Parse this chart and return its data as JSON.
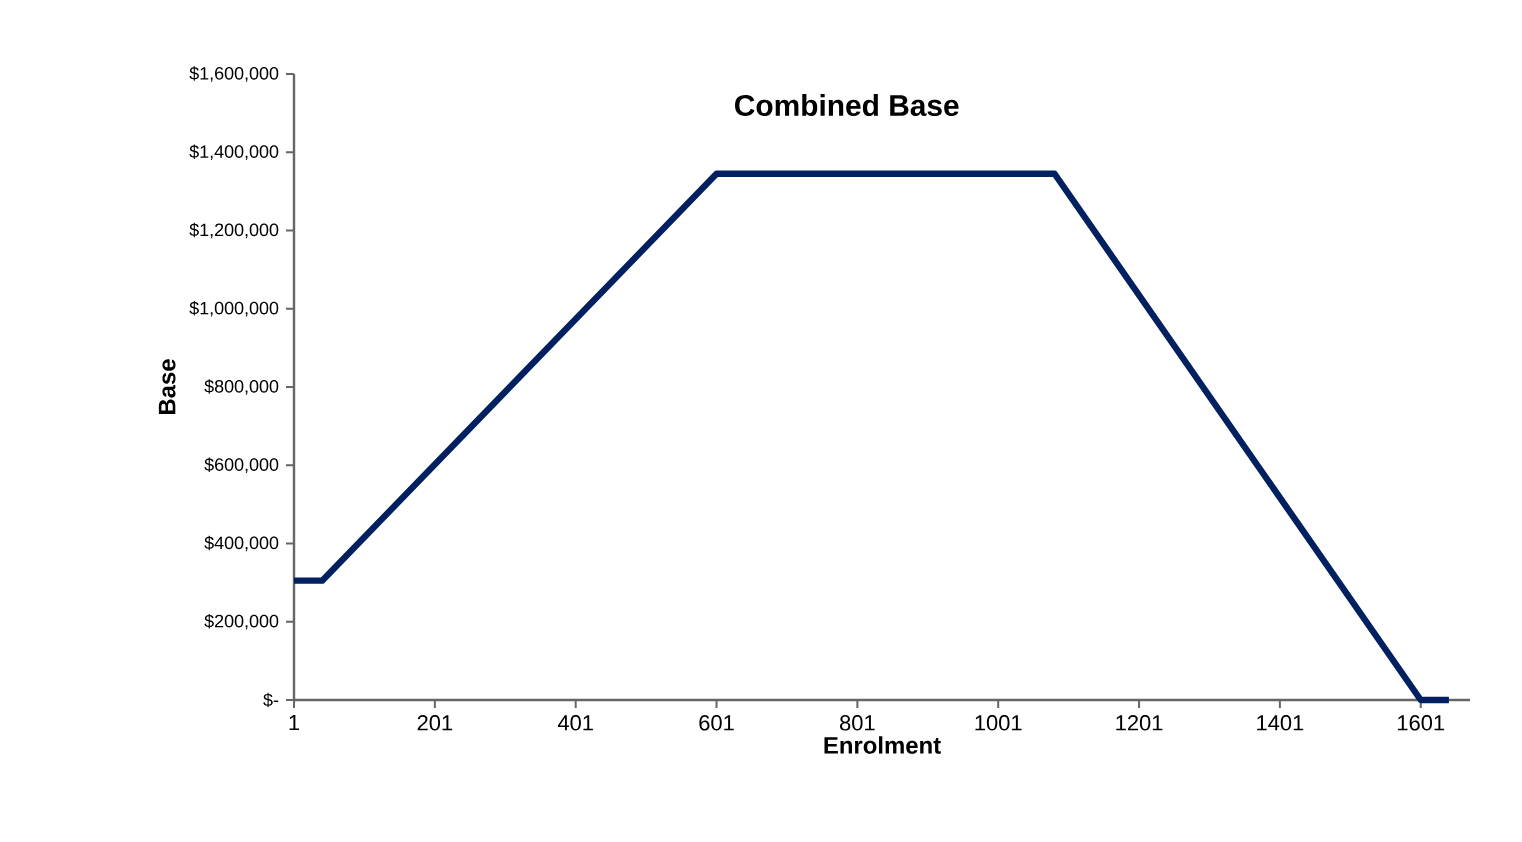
{
  "chart_data": {
    "type": "line",
    "title": "Combined Base",
    "xlabel": "Enrolment",
    "ylabel": "Base",
    "x": [
      1,
      41,
      601,
      1081,
      1601,
      1641
    ],
    "series": [
      {
        "color": "#002060",
        "values": [
          305000,
          305000,
          1345000,
          1345000,
          0,
          0
        ]
      }
    ],
    "xlim": [
      1,
      1671
    ],
    "xticks": [
      1,
      201,
      401,
      601,
      801,
      1001,
      1201,
      1401,
      1601
    ],
    "ylim": [
      0,
      1600000
    ],
    "yticks": [
      {
        "value": 0,
        "label": "$-"
      },
      {
        "value": 200000,
        "label": "$200,000"
      },
      {
        "value": 400000,
        "label": "$400,000"
      },
      {
        "value": 600000,
        "label": "$600,000"
      },
      {
        "value": 800000,
        "label": "$800,000"
      },
      {
        "value": 1000000,
        "label": "$1,000,000"
      },
      {
        "value": 1200000,
        "label": "$1,200,000"
      },
      {
        "value": 1400000,
        "label": "$1,400,000"
      },
      {
        "value": 1600000,
        "label": "$1,600,000"
      }
    ],
    "grid": false,
    "marker": "none",
    "line_style": "solid"
  }
}
